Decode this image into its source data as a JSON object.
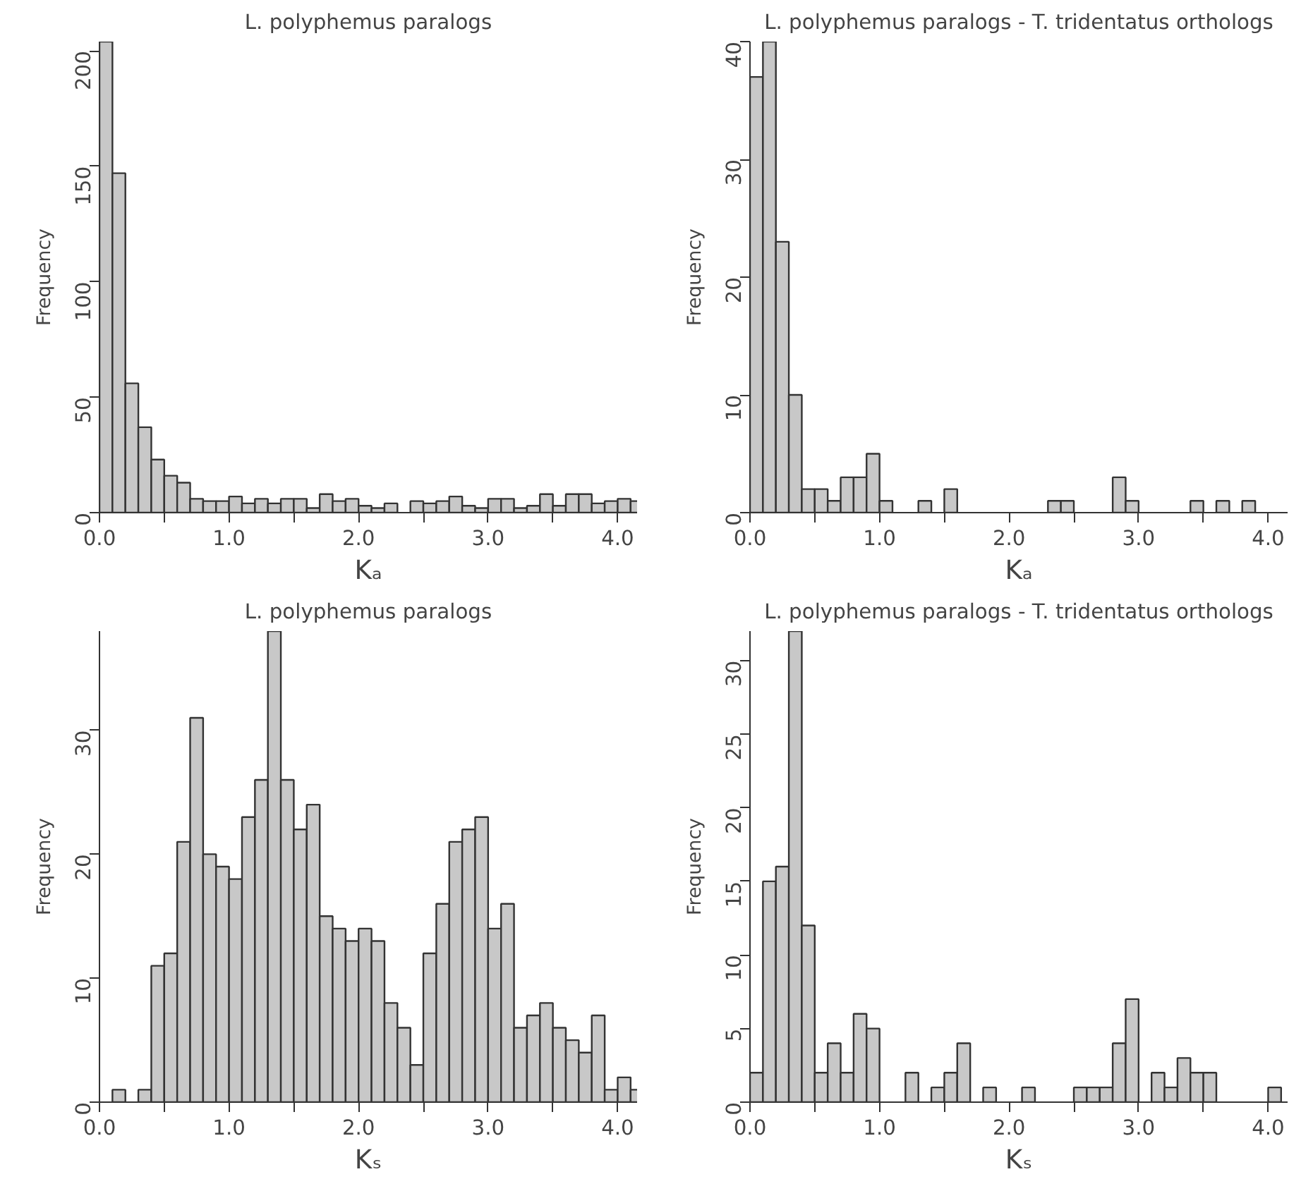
{
  "chart_data": [
    {
      "type": "histogram",
      "title": "L. polyphemus paralogs",
      "xlabel": "Kₐ",
      "ylabel": "Frequency",
      "color": "#c8c8c8",
      "grid": false,
      "bins": [
        0,
        0.1,
        0.2,
        0.3,
        0.4,
        0.5,
        0.6,
        0.7,
        0.8,
        0.9,
        1.0,
        1.1,
        1.2,
        1.3,
        1.4,
        1.5,
        1.6,
        1.7,
        1.8,
        1.9,
        2.0,
        2.1,
        2.2,
        2.3,
        2.4,
        2.5,
        2.6,
        2.7,
        2.8,
        2.9,
        3.0,
        3.1,
        3.2,
        3.3,
        3.4,
        3.5,
        3.6,
        3.7,
        3.8,
        3.9,
        4.0,
        4.1,
        4.2
      ],
      "values": [
        204,
        147,
        56,
        37,
        23,
        16,
        13,
        6,
        5,
        5,
        7,
        4,
        6,
        4,
        6,
        6,
        2,
        8,
        5,
        6,
        3,
        2,
        4,
        0,
        5,
        4,
        5,
        7,
        3,
        2,
        6,
        6,
        2,
        3,
        8,
        3,
        8,
        8,
        4,
        5,
        6,
        5
      ],
      "xlim": [
        0,
        4.15
      ],
      "ylim": [
        0,
        204
      ],
      "xticks": [
        {
          "value": 0,
          "label": "0.0"
        },
        {
          "value": 0.5,
          "label": null
        },
        {
          "value": 1,
          "label": "1.0"
        },
        {
          "value": 1.5,
          "label": null
        },
        {
          "value": 2,
          "label": "2.0"
        },
        {
          "value": 2.5,
          "label": null
        },
        {
          "value": 3,
          "label": "3.0"
        },
        {
          "value": 3.5,
          "label": null
        },
        {
          "value": 4,
          "label": "4.0"
        }
      ],
      "yticks": [
        0,
        50,
        100,
        150,
        200
      ]
    },
    {
      "type": "histogram",
      "title": "L. polyphemus paralogs - T. tridentatus orthologs",
      "xlabel": "Kₐ",
      "ylabel": "Frequency",
      "color": "#c8c8c8",
      "grid": false,
      "bins": [
        0,
        0.1,
        0.2,
        0.3,
        0.4,
        0.5,
        0.6,
        0.7,
        0.8,
        0.9,
        1.0,
        1.1,
        1.2,
        1.3,
        1.4,
        1.5,
        1.6,
        1.7,
        1.8,
        1.9,
        2.0,
        2.1,
        2.2,
        2.3,
        2.4,
        2.5,
        2.6,
        2.7,
        2.8,
        2.9,
        3.0,
        3.1,
        3.2,
        3.3,
        3.4,
        3.5,
        3.6,
        3.7,
        3.8,
        3.9,
        4.0,
        4.1,
        4.2
      ],
      "values": [
        37,
        40,
        23,
        10,
        2,
        2,
        1,
        3,
        3,
        5,
        1,
        0,
        0,
        1,
        0,
        2,
        0,
        0,
        0,
        0,
        0,
        0,
        0,
        1,
        1,
        0,
        0,
        0,
        3,
        1,
        0,
        0,
        0,
        0,
        1,
        0,
        1,
        0,
        1,
        0,
        0,
        0
      ],
      "xlim": [
        0,
        4.15
      ],
      "ylim": [
        0,
        40
      ],
      "xticks": [
        {
          "value": 0,
          "label": "0.0"
        },
        {
          "value": 0.5,
          "label": null
        },
        {
          "value": 1,
          "label": "1.0"
        },
        {
          "value": 1.5,
          "label": null
        },
        {
          "value": 2,
          "label": "2.0"
        },
        {
          "value": 2.5,
          "label": null
        },
        {
          "value": 3,
          "label": "3.0"
        },
        {
          "value": 3.5,
          "label": null
        },
        {
          "value": 4,
          "label": "4.0"
        }
      ],
      "yticks": [
        0,
        10,
        20,
        30,
        40
      ]
    },
    {
      "type": "histogram",
      "title": "L. polyphemus paralogs",
      "xlabel": "Kₛ",
      "ylabel": "Frequency",
      "color": "#c8c8c8",
      "grid": false,
      "bins": [
        0,
        0.1,
        0.2,
        0.3,
        0.4,
        0.5,
        0.6,
        0.7,
        0.8,
        0.9,
        1.0,
        1.1,
        1.2,
        1.3,
        1.4,
        1.5,
        1.6,
        1.7,
        1.8,
        1.9,
        2.0,
        2.1,
        2.2,
        2.3,
        2.4,
        2.5,
        2.6,
        2.7,
        2.8,
        2.9,
        3.0,
        3.1,
        3.2,
        3.3,
        3.4,
        3.5,
        3.6,
        3.7,
        3.8,
        3.9,
        4.0,
        4.1,
        4.2
      ],
      "values": [
        0,
        1,
        0,
        1,
        11,
        12,
        21,
        31,
        20,
        19,
        18,
        23,
        26,
        38,
        26,
        22,
        24,
        15,
        14,
        13,
        14,
        13,
        8,
        6,
        3,
        12,
        16,
        21,
        22,
        23,
        14,
        16,
        6,
        7,
        8,
        6,
        5,
        4,
        7,
        1,
        2,
        1
      ],
      "xlim": [
        0,
        4.15
      ],
      "ylim": [
        0,
        38
      ],
      "xticks": [
        {
          "value": 0,
          "label": "0.0"
        },
        {
          "value": 0.5,
          "label": null
        },
        {
          "value": 1,
          "label": "1.0"
        },
        {
          "value": 1.5,
          "label": null
        },
        {
          "value": 2,
          "label": "2.0"
        },
        {
          "value": 2.5,
          "label": null
        },
        {
          "value": 3,
          "label": "3.0"
        },
        {
          "value": 3.5,
          "label": null
        },
        {
          "value": 4,
          "label": "4.0"
        }
      ],
      "yticks": [
        0,
        10,
        20,
        30
      ]
    },
    {
      "type": "histogram",
      "title": "L. polyphemus paralogs - T. tridentatus orthologs",
      "xlabel": "Kₛ",
      "ylabel": "Frequency",
      "color": "#c8c8c8",
      "grid": false,
      "bins": [
        0,
        0.1,
        0.2,
        0.3,
        0.4,
        0.5,
        0.6,
        0.7,
        0.8,
        0.9,
        1.0,
        1.1,
        1.2,
        1.3,
        1.4,
        1.5,
        1.6,
        1.7,
        1.8,
        1.9,
        2.0,
        2.1,
        2.2,
        2.3,
        2.4,
        2.5,
        2.6,
        2.7,
        2.8,
        2.9,
        3.0,
        3.1,
        3.2,
        3.3,
        3.4,
        3.5,
        3.6,
        3.7,
        3.8,
        3.9,
        4.0,
        4.1,
        4.2
      ],
      "values": [
        2,
        15,
        16,
        32,
        12,
        2,
        4,
        2,
        6,
        5,
        0,
        0,
        2,
        0,
        1,
        2,
        4,
        0,
        1,
        0,
        0,
        1,
        0,
        0,
        0,
        1,
        1,
        1,
        4,
        7,
        0,
        2,
        1,
        3,
        2,
        2,
        0,
        0,
        0,
        0,
        1,
        0
      ],
      "xlim": [
        0,
        4.15
      ],
      "ylim": [
        0,
        32
      ],
      "xticks": [
        {
          "value": 0,
          "label": "0.0"
        },
        {
          "value": 0.5,
          "label": null
        },
        {
          "value": 1,
          "label": "1.0"
        },
        {
          "value": 1.5,
          "label": null
        },
        {
          "value": 2,
          "label": "2.0"
        },
        {
          "value": 2.5,
          "label": null
        },
        {
          "value": 3,
          "label": "3.0"
        },
        {
          "value": 3.5,
          "label": null
        },
        {
          "value": 4,
          "label": "4.0"
        }
      ],
      "yticks": [
        0,
        5,
        10,
        15,
        20,
        25,
        30
      ]
    }
  ]
}
